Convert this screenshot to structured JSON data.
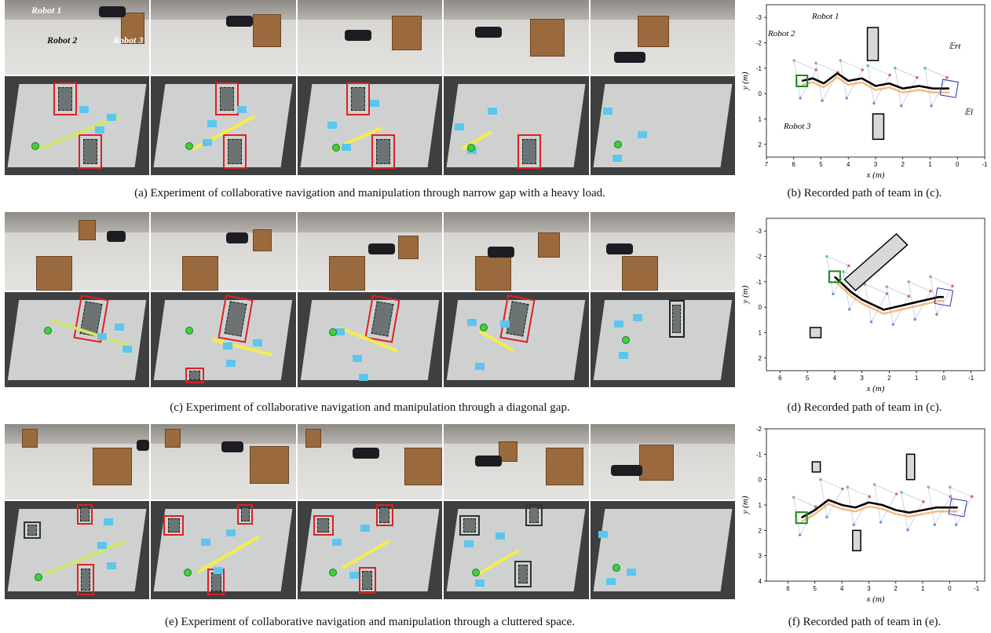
{
  "captions": {
    "a": "(a) Experiment of collaborative navigation and manipulation through narrow gap with a heavy load.",
    "b": "(b) Recorded path of team in (c).",
    "c": "(c) Experiment of collaborative navigation and manipulation through a diagonal gap.",
    "d": "(d) Recorded path of team in (c).",
    "e": "(e) Experiment of collaborative navigation and manipulation through a cluttered space.",
    "f": "(f) Recorded path of team in (e)."
  },
  "photo_labels": {
    "robot1": "Robot 1",
    "robot2": "Robot 2",
    "robot3": "Robot 3"
  },
  "plot_annotations": {
    "robot1": "Robot 1",
    "robot2": "Robot 2",
    "robot3": "Robot 3",
    "e_rt": "𝔼rt",
    "e_l": "𝔼l"
  },
  "chart_data": [
    {
      "type": "scatter",
      "panel": "b",
      "xlabel": "x (m)",
      "ylabel": "y (m)",
      "xticks": [
        "7",
        "6",
        "5",
        "4",
        "3",
        "2",
        "1",
        "0",
        "-1"
      ],
      "yticks": [
        "-3",
        "-2",
        "-1",
        "0",
        "1",
        "2"
      ],
      "xlim": [
        7,
        -1
      ],
      "ylim": [
        -3.5,
        2.5
      ],
      "obstacles": [
        {
          "x": [
            2.9,
            3.3
          ],
          "y": [
            -2.6,
            -1.3
          ]
        },
        {
          "x": [
            2.7,
            3.1
          ],
          "y": [
            0.8,
            1.8
          ]
        }
      ],
      "path": {
        "x": [
          5.7,
          5.3,
          4.9,
          4.4,
          4.0,
          3.5,
          3.0,
          2.5,
          2.0,
          1.4,
          0.9,
          0.3
        ],
        "y": [
          -0.5,
          -0.6,
          -0.4,
          -0.8,
          -0.5,
          -0.6,
          -0.3,
          -0.4,
          -0.2,
          -0.3,
          -0.2,
          -0.2
        ]
      }
    },
    {
      "type": "scatter",
      "panel": "d",
      "xlabel": "x (m)",
      "ylabel": "y (m)",
      "xticks": [
        "6",
        "5",
        "4",
        "3",
        "2",
        "1",
        "0",
        "-1"
      ],
      "yticks": [
        "-3",
        "-2",
        "-1",
        "0",
        "1",
        "2"
      ],
      "xlim": [
        6.5,
        -1.5
      ],
      "ylim": [
        -3.5,
        2.5
      ],
      "obstacles": [
        {
          "x": [
            4.9,
            4.5
          ],
          "y": [
            0.8,
            1.2
          ]
        }
      ],
      "path": {
        "x": [
          4.0,
          3.7,
          3.4,
          3.0,
          2.6,
          2.2,
          1.8,
          1.4,
          1.0,
          0.6,
          0.2,
          0.0
        ],
        "y": [
          -1.2,
          -0.9,
          -0.6,
          -0.3,
          -0.1,
          0.1,
          0.0,
          -0.1,
          -0.2,
          -0.3,
          -0.4,
          -0.4
        ]
      }
    },
    {
      "type": "scatter",
      "panel": "f",
      "xlabel": "x (m)",
      "ylabel": "y (m)",
      "xticks": [
        "6",
        "5",
        "4",
        "3",
        "2",
        "1",
        "0",
        "-1"
      ],
      "yticks": [
        "-2",
        "-1",
        "0",
        "1",
        "2",
        "3",
        "4"
      ],
      "xlim": [
        6.8,
        -1.3
      ],
      "ylim": [
        -2,
        4
      ],
      "obstacles": [
        {
          "x": [
            5.1,
            4.8
          ],
          "y": [
            -0.7,
            -0.3
          ]
        },
        {
          "x": [
            1.6,
            1.3
          ],
          "y": [
            -1.0,
            0.0
          ]
        },
        {
          "x": [
            3.6,
            3.3
          ],
          "y": [
            2.0,
            2.8
          ]
        }
      ],
      "path": {
        "x": [
          5.5,
          5.0,
          4.5,
          4.0,
          3.5,
          3.0,
          2.5,
          2.0,
          1.5,
          1.0,
          0.5,
          0.0,
          -0.3
        ],
        "y": [
          1.5,
          1.2,
          0.8,
          1.0,
          1.1,
          0.9,
          1.0,
          1.2,
          1.3,
          1.2,
          1.1,
          1.1,
          1.1
        ]
      }
    }
  ]
}
